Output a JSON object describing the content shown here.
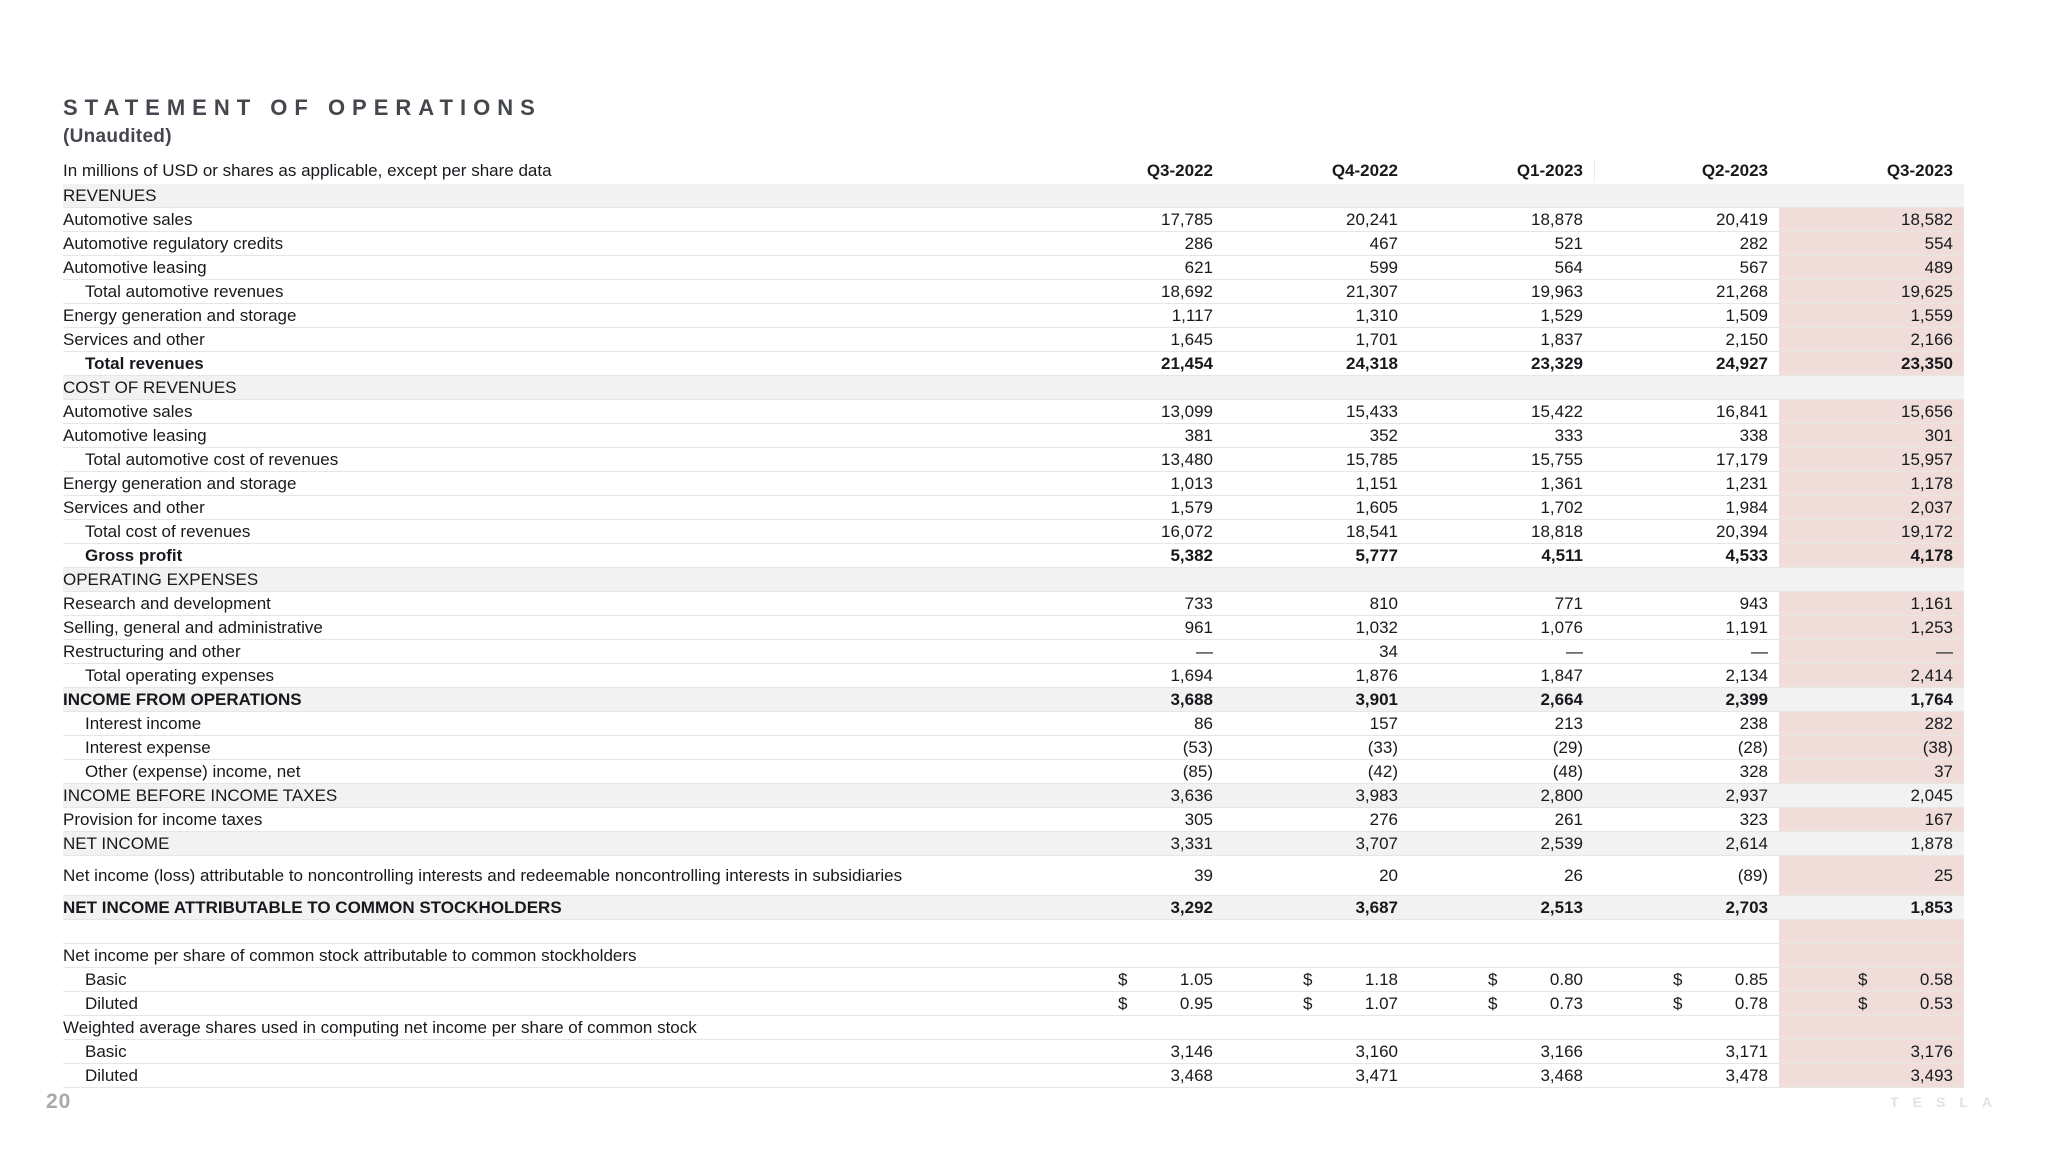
{
  "page": {
    "title": "STATEMENT OF OPERATIONS",
    "subtitle": "(Unaudited)",
    "page_number": "20",
    "brand_logo": "TESLA"
  },
  "table": {
    "note": "In millions of USD or shares as applicable, except per share data",
    "columns": [
      "Q3-2022",
      "Q4-2022",
      "Q1-2023",
      "Q2-2023",
      "Q3-2023"
    ],
    "highlighted_column_index": 4,
    "colors": {
      "column_highlight": "#f0ddd9",
      "section_band": "#f2f2f2",
      "divider": "#e8e6e4",
      "text": "#17191d",
      "muted": "#a9a9a9"
    },
    "rows": [
      {
        "type": "section",
        "label": "REVENUES",
        "values": [
          "",
          "",
          "",
          "",
          ""
        ]
      },
      {
        "type": "data",
        "label": "Automotive sales",
        "values": [
          "17,785",
          "20,241",
          "18,878",
          "20,419",
          "18,582"
        ]
      },
      {
        "type": "data",
        "label": "Automotive regulatory credits",
        "values": [
          "286",
          "467",
          "521",
          "282",
          "554"
        ]
      },
      {
        "type": "data",
        "label": "Automotive leasing",
        "values": [
          "621",
          "599",
          "564",
          "567",
          "489"
        ]
      },
      {
        "type": "data",
        "indent": true,
        "label": "Total automotive revenues",
        "values": [
          "18,692",
          "21,307",
          "19,963",
          "21,268",
          "19,625"
        ]
      },
      {
        "type": "data",
        "label": "Energy generation and storage",
        "values": [
          "1,117",
          "1,310",
          "1,529",
          "1,509",
          "1,559"
        ]
      },
      {
        "type": "data",
        "label": "Services and other",
        "values": [
          "1,645",
          "1,701",
          "1,837",
          "2,150",
          "2,166"
        ]
      },
      {
        "type": "data",
        "indent": true,
        "bold": true,
        "label": "Total revenues",
        "values": [
          "21,454",
          "24,318",
          "23,329",
          "24,927",
          "23,350"
        ]
      },
      {
        "type": "section",
        "label": "COST OF REVENUES",
        "values": [
          "",
          "",
          "",
          "",
          ""
        ]
      },
      {
        "type": "data",
        "label": "Automotive sales",
        "values": [
          "13,099",
          "15,433",
          "15,422",
          "16,841",
          "15,656"
        ]
      },
      {
        "type": "data",
        "label": "Automotive leasing",
        "values": [
          "381",
          "352",
          "333",
          "338",
          "301"
        ]
      },
      {
        "type": "data",
        "indent": true,
        "label": "Total automotive cost of revenues",
        "values": [
          "13,480",
          "15,785",
          "15,755",
          "17,179",
          "15,957"
        ]
      },
      {
        "type": "data",
        "label": "Energy generation and storage",
        "values": [
          "1,013",
          "1,151",
          "1,361",
          "1,231",
          "1,178"
        ]
      },
      {
        "type": "data",
        "label": "Services and other",
        "values": [
          "1,579",
          "1,605",
          "1,702",
          "1,984",
          "2,037"
        ]
      },
      {
        "type": "data",
        "indent": true,
        "label": "Total cost of revenues",
        "values": [
          "16,072",
          "18,541",
          "18,818",
          "20,394",
          "19,172"
        ]
      },
      {
        "type": "data",
        "indent": true,
        "bold": true,
        "label": "Gross profit",
        "values": [
          "5,382",
          "5,777",
          "4,511",
          "4,533",
          "4,178"
        ]
      },
      {
        "type": "section",
        "label": "OPERATING EXPENSES",
        "values": [
          "",
          "",
          "",
          "",
          ""
        ]
      },
      {
        "type": "data",
        "label": "Research and development",
        "values": [
          "733",
          "810",
          "771",
          "943",
          "1,161"
        ]
      },
      {
        "type": "data",
        "label": "Selling, general and administrative",
        "values": [
          "961",
          "1,032",
          "1,076",
          "1,191",
          "1,253"
        ]
      },
      {
        "type": "data",
        "label": "Restructuring and other",
        "values": [
          "—",
          "34",
          "—",
          "—",
          "—"
        ]
      },
      {
        "type": "data",
        "indent": true,
        "label": "Total operating expenses",
        "values": [
          "1,694",
          "1,876",
          "1,847",
          "2,134",
          "2,414"
        ]
      },
      {
        "type": "section",
        "bold": true,
        "label": "INCOME FROM OPERATIONS",
        "values": [
          "3,688",
          "3,901",
          "2,664",
          "2,399",
          "1,764"
        ]
      },
      {
        "type": "data",
        "indent": true,
        "label": "Interest income",
        "values": [
          "86",
          "157",
          "213",
          "238",
          "282"
        ]
      },
      {
        "type": "data",
        "indent": true,
        "label": "Interest expense",
        "values": [
          "(53)",
          "(33)",
          "(29)",
          "(28)",
          "(38)"
        ]
      },
      {
        "type": "data",
        "indent": true,
        "label": "Other (expense) income, net",
        "values": [
          "(85)",
          "(42)",
          "(48)",
          "328",
          "37"
        ]
      },
      {
        "type": "section",
        "label": "INCOME BEFORE INCOME TAXES",
        "values": [
          "3,636",
          "3,983",
          "2,800",
          "2,937",
          "2,045"
        ]
      },
      {
        "type": "data",
        "label": "Provision for income taxes",
        "values": [
          "305",
          "276",
          "261",
          "323",
          "167"
        ]
      },
      {
        "type": "section",
        "label": "NET INCOME",
        "values": [
          "3,331",
          "3,707",
          "2,539",
          "2,614",
          "1,878"
        ]
      },
      {
        "type": "data",
        "multiline": true,
        "label": "Net income (loss) attributable to noncontrolling interests and redeemable noncontrolling interests in subsidiaries",
        "values": [
          "39",
          "20",
          "26",
          "(89)",
          "25"
        ]
      },
      {
        "type": "section",
        "bold": true,
        "label": "NET INCOME ATTRIBUTABLE TO COMMON STOCKHOLDERS",
        "values": [
          "3,292",
          "3,687",
          "2,513",
          "2,703",
          "1,853"
        ]
      },
      {
        "type": "spacer",
        "label": "",
        "values": [
          "",
          "",
          "",
          "",
          ""
        ]
      },
      {
        "type": "data",
        "label": "Net income per share of common stock attributable to common stockholders",
        "values": [
          "",
          "",
          "",
          "",
          ""
        ]
      },
      {
        "type": "data",
        "indent": true,
        "dollar": true,
        "label": "Basic",
        "values": [
          "1.05",
          "1.18",
          "0.80",
          "0.85",
          "0.58"
        ]
      },
      {
        "type": "data",
        "indent": true,
        "dollar": true,
        "label": "Diluted",
        "values": [
          "0.95",
          "1.07",
          "0.73",
          "0.78",
          "0.53"
        ]
      },
      {
        "type": "data",
        "label": "Weighted average shares used in computing net income per share of common stock",
        "values": [
          "",
          "",
          "",
          "",
          ""
        ]
      },
      {
        "type": "data",
        "indent": true,
        "label": "Basic",
        "values": [
          "3,146",
          "3,160",
          "3,166",
          "3,171",
          "3,176"
        ]
      },
      {
        "type": "data",
        "indent": true,
        "label": "Diluted",
        "values": [
          "3,468",
          "3,471",
          "3,468",
          "3,478",
          "3,493"
        ]
      }
    ]
  }
}
